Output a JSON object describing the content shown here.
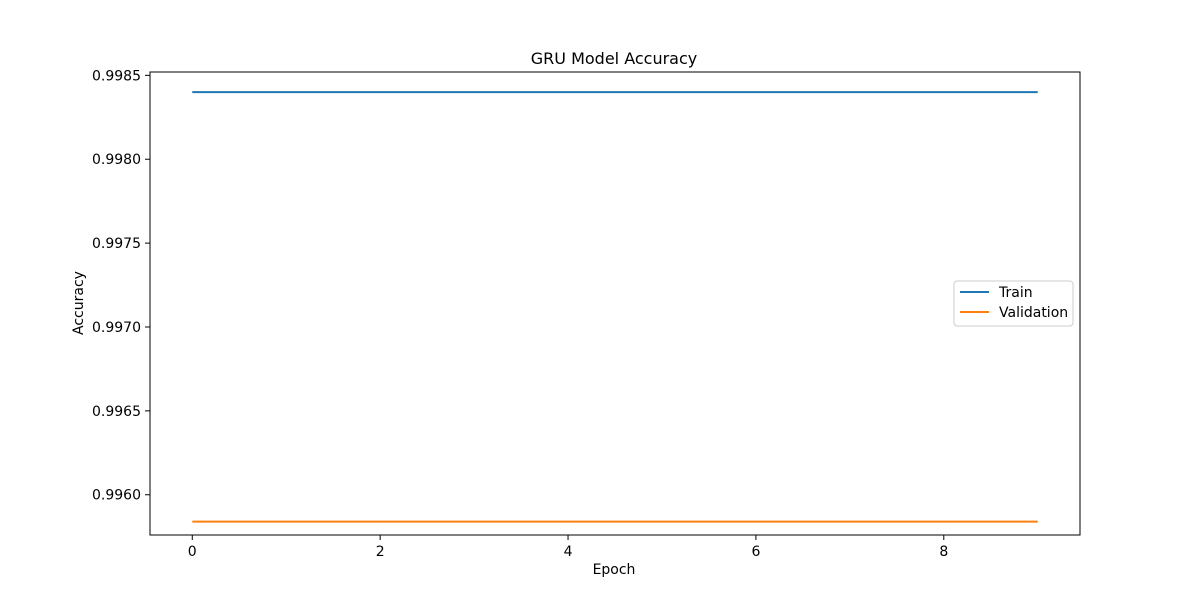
{
  "chart_data": {
    "type": "line",
    "title": "GRU Model Accuracy",
    "xlabel": "Epoch",
    "ylabel": "Accuracy",
    "x": [
      0,
      1,
      2,
      3,
      4,
      5,
      6,
      7,
      8,
      9
    ],
    "xlim": [
      -0.45,
      9.45
    ],
    "ylim": [
      0.99576,
      0.99852
    ],
    "xticks": [
      0,
      2,
      4,
      6,
      8
    ],
    "yticks": [
      0.996,
      0.9965,
      0.997,
      0.9975,
      0.998,
      0.9985
    ],
    "ytick_labels": [
      "0.9960",
      "0.9965",
      "0.9970",
      "0.9975",
      "0.9980",
      "0.9985"
    ],
    "grid": false,
    "legend_position": "center-right",
    "series": [
      {
        "name": "Train",
        "color": "#1f77b4",
        "values": [
          0.9984,
          0.9984,
          0.9984,
          0.9984,
          0.9984,
          0.9984,
          0.9984,
          0.9984,
          0.9984,
          0.9984
        ]
      },
      {
        "name": "Validation",
        "color": "#ff7f0e",
        "values": [
          0.99584,
          0.99584,
          0.99584,
          0.99584,
          0.99584,
          0.99584,
          0.99584,
          0.99584,
          0.99584,
          0.99584
        ]
      }
    ]
  }
}
